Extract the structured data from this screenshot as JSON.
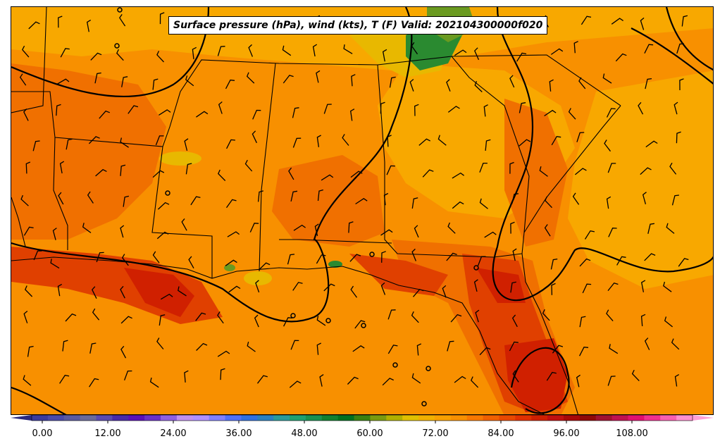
{
  "map": {
    "title": "Surface pressure (hPa), wind (kts), T (F) Valid: 202104300000f020"
  },
  "colorbar": {
    "tick_labels": [
      "0.00",
      "12.00",
      "24.00",
      "36.00",
      "48.00",
      "60.00",
      "72.00",
      "84.00",
      "96.00",
      "108.00"
    ],
    "colors": [
      "#3b3b9c",
      "#4a4aa8",
      "#5a5aa0",
      "#6a6a9a",
      "#5a4ab0",
      "#4a2aa8",
      "#5a10b8",
      "#6a30c8",
      "#9060e0",
      "#c090f0",
      "#b090ff",
      "#8080ff",
      "#5070f8",
      "#3070e0",
      "#2a80c0",
      "#2a9a9a",
      "#20a070",
      "#1a9050",
      "#108030",
      "#007020",
      "#3a8010",
      "#7a9a10",
      "#b0b000",
      "#e0c000",
      "#f0b000",
      "#f8a000",
      "#f89000",
      "#f87800",
      "#f06000",
      "#e84800",
      "#e03000",
      "#d02000",
      "#c01010",
      "#a80808",
      "#900808",
      "#a01030",
      "#c01050",
      "#e01070",
      "#f03090",
      "#f860b0",
      "#ff90d0"
    ],
    "under_color": "#2a2a80",
    "over_color": "#ffa0d8"
  },
  "field_colors": {
    "background": "#f89000",
    "warm": "#f07000",
    "hot": "#e04000",
    "hottest": "#d02000",
    "cool": "#f8a800",
    "yellow": "#e8b800",
    "green": "#2a8a30"
  },
  "wind_barbs": "black short barbs",
  "isobars": "black"
}
